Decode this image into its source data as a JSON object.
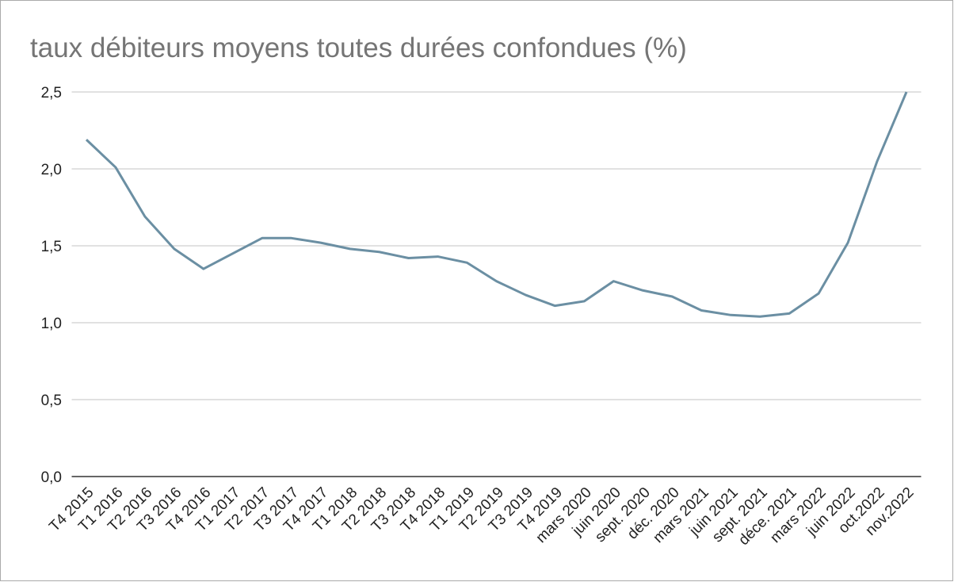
{
  "chart_data": {
    "type": "line",
    "title": "taux débiteurs moyens toutes durées confondues (%)",
    "categories": [
      "T4 2015",
      "T1 2016",
      "T2 2016",
      "T3 2016",
      "T4 2016",
      "T1 2017",
      "T2 2017",
      "T3 2017",
      "T4 2017",
      "T1 2018",
      "T2 2018",
      "T3 2018",
      "T4 2018",
      "T1 2019",
      "T2 2019",
      "T3 2019",
      "T4 2019",
      "mars 2020",
      "juin 2020",
      "sept. 2020",
      "déc. 2020",
      "mars 2021",
      "juin 2021",
      "sept. 2021",
      "déce. 2021",
      "mars 2022",
      "juin 2022",
      "oct.2022",
      "nov.2022"
    ],
    "series": [
      {
        "color": "#6b8fa3",
        "values": [
          2.19,
          2.01,
          1.69,
          1.48,
          1.35,
          1.45,
          1.55,
          1.55,
          1.52,
          1.48,
          1.46,
          1.42,
          1.43,
          1.39,
          1.27,
          1.18,
          1.11,
          1.14,
          1.27,
          1.21,
          1.17,
          1.08,
          1.05,
          1.04,
          1.06,
          1.19,
          1.52,
          2.05,
          2.5
        ]
      }
    ],
    "ylim": [
      0,
      2.5
    ],
    "yticks": [
      {
        "value": 0,
        "label": "0,0"
      },
      {
        "value": 0.5,
        "label": "0,5"
      },
      {
        "value": 1,
        "label": "1,0"
      },
      {
        "value": 1.5,
        "label": "1,5"
      },
      {
        "value": 2,
        "label": "2,0"
      },
      {
        "value": 2.5,
        "label": "2,5"
      }
    ],
    "grid": true
  }
}
